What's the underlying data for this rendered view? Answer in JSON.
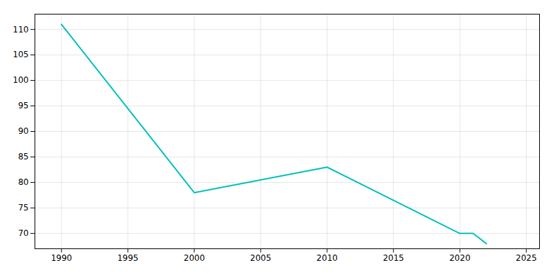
{
  "chart_data": {
    "type": "line",
    "x": [
      1990,
      2000,
      2010,
      2020,
      2021,
      2022
    ],
    "values": [
      111,
      78,
      83,
      70,
      70,
      68
    ],
    "color": "#00BFBF",
    "xlim": [
      1988,
      2026
    ],
    "ylim": [
      67,
      113
    ],
    "xticks": [
      1990,
      1995,
      2000,
      2005,
      2010,
      2015,
      2020,
      2025
    ],
    "yticks": [
      70,
      75,
      80,
      85,
      90,
      95,
      100,
      105,
      110
    ],
    "grid": true
  }
}
